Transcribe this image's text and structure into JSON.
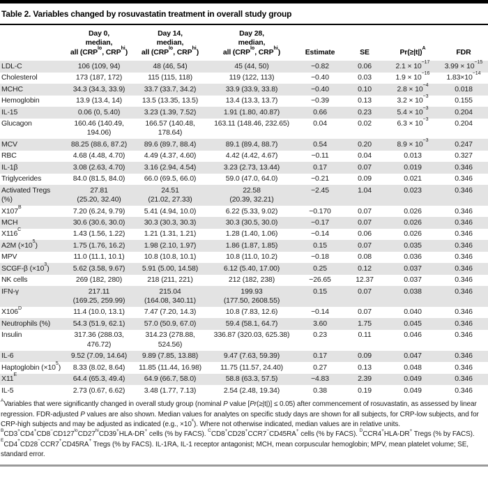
{
  "title": "Table 2. Variables changed by rosuvastatin treatment in overall study group",
  "colors": {
    "stripe": "#e3e3e3",
    "top_rule": "#000000",
    "bottom_rule": "#9a9a9a"
  },
  "table": {
    "columns": [
      "",
      "Day 0,\nmedian,\nall (CRP^{lo}, CRP^{hi})",
      "Day 14,\nmedian,\nall (CRP^{lo}, CRP^{hi})",
      "Day 28,\nmedian,\nall (CRP^{lo}, CRP^{hi})",
      "Estimate",
      "SE",
      "Pr(≥|t|)^{A}",
      "FDR"
    ],
    "rows": [
      {
        "label": "LDL-C",
        "day0": "106 (109, 94)",
        "day14": "48 (46, 54)",
        "day28": "45 (44, 50)",
        "estimate": "−0.82",
        "se": "0.06",
        "pr": "2.1 × 10^{−17}",
        "fdr": "3.99 × 10^{−15}"
      },
      {
        "label": "Cholesterol",
        "day0": "173 (187, 172)",
        "day14": "115 (115, 118)",
        "day28": "119 (122, 113)",
        "estimate": "−0.40",
        "se": "0.03",
        "pr": "1.9 × 10^{−16}",
        "fdr": "1.83×10^{−14}"
      },
      {
        "label": "MCHC",
        "day0": "34.3 (34.3, 33.9)",
        "day14": "33.7 (33.7, 34.2)",
        "day28": "33.9 (33.9, 33.8)",
        "estimate": "−0.40",
        "se": "0.10",
        "pr": "2.8 × 10^{−4}",
        "fdr": "0.018"
      },
      {
        "label": "Hemoglobin",
        "day0": "13.9 (13.4, 14)",
        "day14": "13.5 (13.35, 13.5)",
        "day28": "13.4 (13.3, 13.7)",
        "estimate": "−0.39",
        "se": "0.13",
        "pr": "3.2 × 10^{−3}",
        "fdr": "0.155"
      },
      {
        "label": "IL-15",
        "day0": "0.06 (0, 5.40)",
        "day14": "3.23 (1.39, 7.52)",
        "day28": "1.91 (1.80, 40.87)",
        "estimate": "0.66",
        "se": "0.23",
        "pr": "5.4 × 10^{−3}",
        "fdr": "0.204"
      },
      {
        "label": "Glucagon",
        "day0": "160.46 (140.49,\n194.06)",
        "day14": "166.57 (140.48,\n178.64)",
        "day28": "163.11 (148.46, 232.65)",
        "estimate": "0.04",
        "se": "0.02",
        "pr": "6.3 × 10^{−3}",
        "fdr": "0.204"
      },
      {
        "label": "MCV",
        "day0": "88.25 (88.6, 87.2)",
        "day14": "89.6 (89.7, 88.4)",
        "day28": "89.1 (89.4, 88.7)",
        "estimate": "0.54",
        "se": "0.20",
        "pr": "8.9 × 10^{−3}",
        "fdr": "0.247"
      },
      {
        "label": "RBC",
        "day0": "4.68 (4.48, 4.70)",
        "day14": "4.49 (4.37, 4.60)",
        "day28": "4.42 (4.42, 4.67)",
        "estimate": "−0.11",
        "se": "0.04",
        "pr": "0.013",
        "fdr": "0.327"
      },
      {
        "label": "IL-1β",
        "day0": "3.08 (2.63, 4.70)",
        "day14": "3.16 (2.94, 4.54)",
        "day28": "3.23 (2.73, 13.44)",
        "estimate": "0.17",
        "se": "0.07",
        "pr": "0.019",
        "fdr": "0.346"
      },
      {
        "label": "Triglycerides",
        "day0": "84.0 (81.5, 84.0)",
        "day14": "66.0 (69.5, 66.0)",
        "day28": "59.0 (47.0, 64.0)",
        "estimate": "−0.21",
        "se": "0.09",
        "pr": "0.021",
        "fdr": "0.346"
      },
      {
        "label": "Activated Tregs\n(%)",
        "day0": "27.81\n(25.20, 32.40)",
        "day14": "24.51\n(21.02, 27.33)",
        "day28": "22.58\n(20.39, 32.21)",
        "estimate": "−2.45",
        "se": "1.04",
        "pr": "0.023",
        "fdr": "0.346"
      },
      {
        "label": "X107^{B}",
        "day0": "7.20 (6.24, 9.79)",
        "day14": "5.41 (4.94, 10.0)",
        "day28": "6.22 (5.33, 9.02)",
        "estimate": "−0.170",
        "se": "0.07",
        "pr": "0.026",
        "fdr": "0.346"
      },
      {
        "label": "MCH",
        "day0": "30.6 (30.6, 30.0)",
        "day14": "30.3 (30.3, 30.3)",
        "day28": "30.3 (30.5, 30.0)",
        "estimate": "−0.17",
        "se": "0.07",
        "pr": "0.026",
        "fdr": "0.346"
      },
      {
        "label": "X116^{C}",
        "day0": "1.43 (1.56, 1.22)",
        "day14": "1.21 (1.31, 1.21)",
        "day28": "1.28 (1.40, 1.06)",
        "estimate": "−0.14",
        "se": "0.06",
        "pr": "0.026",
        "fdr": "0.346"
      },
      {
        "label": "A2M (×10^{5})",
        "day0": "1.75 (1.76, 16.2)",
        "day14": "1.98 (2.10, 1.97)",
        "day28": "1.86 (1.87, 1.85)",
        "estimate": "0.15",
        "se": "0.07",
        "pr": "0.035",
        "fdr": "0.346"
      },
      {
        "label": "MPV",
        "day0": "11.0 (11.1, 10.1)",
        "day14": "10.8 (10.8, 10.1)",
        "day28": "10.8 (11.0, 10.2)",
        "estimate": "−0.18",
        "se": "0.08",
        "pr": "0.036",
        "fdr": "0.346"
      },
      {
        "label": "SCGF-β (×10^{3})",
        "day0": "5.62 (3.58, 9.67)",
        "day14": "5.91 (5.00, 14.58)",
        "day28": "6.12 (5.40, 17.00)",
        "estimate": "0.25",
        "se": "0.12",
        "pr": "0.037",
        "fdr": "0.346"
      },
      {
        "label": "NK cells",
        "day0": "269 (182, 280)",
        "day14": "218 (211, 221)",
        "day28": "212 (182, 238)",
        "estimate": "−26.65",
        "se": "12.37",
        "pr": "0.037",
        "fdr": "0.346"
      },
      {
        "label": "IFN-γ",
        "day0": "217.11\n(169.25, 259.99)",
        "day14": "215.04\n(164.08, 340.11)",
        "day28": "199.93\n(177.50, 2608.55)",
        "estimate": "0.15",
        "se": "0.07",
        "pr": "0.038",
        "fdr": "0.346"
      },
      {
        "label": "X106^{D}",
        "day0": "11.4 (10.0, 13.1)",
        "day14": "7.47 (7.20, 14.3)",
        "day28": "10.8 (7.83, 12.6)",
        "estimate": "−0.14",
        "se": "0.07",
        "pr": "0.040",
        "fdr": "0.346"
      },
      {
        "label": "Neutrophils (%)",
        "day0": "54.3 (51.9, 62.1)",
        "day14": "57.0 (50.9, 67.0)",
        "day28": "59.4 (58.1, 64.7)",
        "estimate": "3.60",
        "se": "1.75",
        "pr": "0.045",
        "fdr": "0.346"
      },
      {
        "label": "Insulin",
        "day0": "317.36 (288.03,\n476.72)",
        "day14": "314.23 (278.88,\n524.56)",
        "day28": "336.87 (320.03, 625.38)",
        "estimate": "0.23",
        "se": "0.11",
        "pr": "0.046",
        "fdr": "0.346"
      },
      {
        "label": "IL-6",
        "day0": "9.52 (7.09, 14.64)",
        "day14": "9.89 (7.85, 13.88)",
        "day28": "9.47 (7.63, 59.39)",
        "estimate": "0.17",
        "se": "0.09",
        "pr": "0.047",
        "fdr": "0.346"
      },
      {
        "label": "Haptoglobin (×10^{5})",
        "day0": "8.33 (8.02, 8.64)",
        "day14": "11.85 (11.44, 16.98)",
        "day28": "11.75 (11.57, 24.40)",
        "estimate": "0.27",
        "se": "0.13",
        "pr": "0.048",
        "fdr": "0.346"
      },
      {
        "label": "X11^{E}",
        "day0": "64.4 (65.3, 49.4)",
        "day14": "64.9 (66.7, 58.0)",
        "day28": "58.8 (63.3, 57.5)",
        "estimate": "−4.83",
        "se": "2.39",
        "pr": "0.049",
        "fdr": "0.346"
      },
      {
        "label": "IL-5",
        "day0": "2.73 (0.67, 6.62)",
        "day14": "3.48 (1.77, 7.13)",
        "day28": "2.54 (2.48, 19.34)",
        "estimate": "0.38",
        "se": "0.19",
        "pr": "0.049",
        "fdr": "0.346"
      }
    ]
  },
  "footnote": "^{A}Variables that were significantly changed in overall study group (nominal _P_ value [_Pr_(≥|t|)] ≤ 0.05) after commencement of rosuvastatin, as assessed by linear regression. FDR-adjusted _P_ values are also shown. Median values for analytes on specific study days are shown for all subjects, for CRP-low subjects, and for CRP-high subjects and may be adjusted as indicated (e.g., ×10^{x}). Where not otherwise indicated, median values are in relative units. ^{B}CD3^{+}CD4^{+}CD8^{−}CD127^{lo}CD27^{hi}CD39^{+}HLA-DR^{+} cells (% by FACS). ^{C}CD8^{+}CD28^{+}CCR7^{−}CD45RA^{+} cells (% by FACS). ^{D}CCR4^{+}HLA-DR^{+} Tregs (% by FACS). ^{E}CD4^{+}CD28^{−}CCR7^{+}CD45RA^{+} Tregs (% by FACS). IL-1RA, IL-1 receptor antagonist; MCH, mean corpuscular hemoglobin; MPV, mean platelet volume; SE, standard error."
}
